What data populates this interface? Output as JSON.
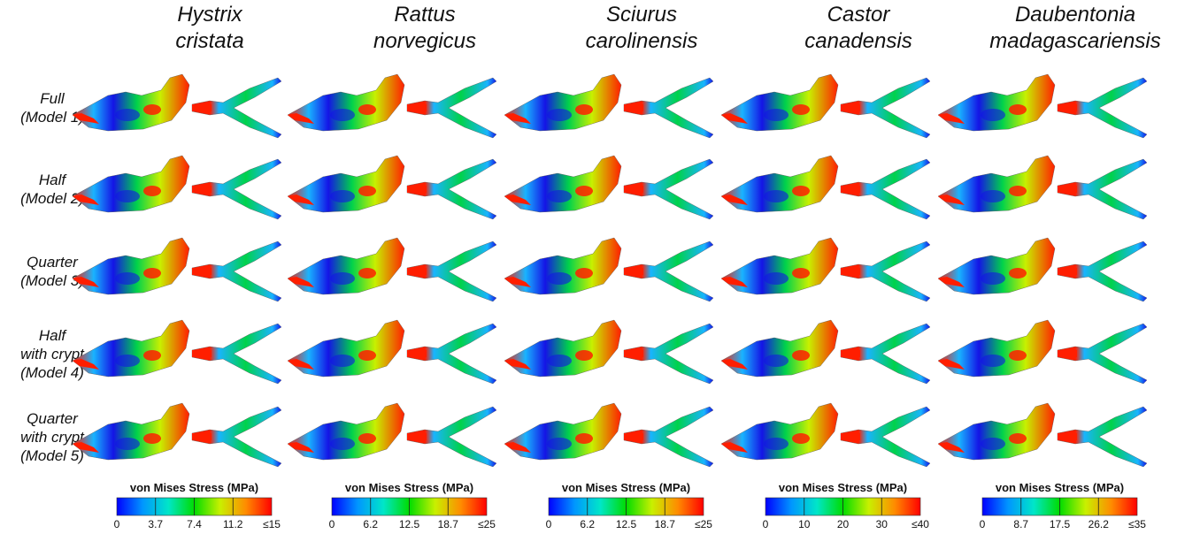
{
  "species": [
    {
      "line1": "Hystrix",
      "line2": "cristata",
      "ticks": [
        "0",
        "3.7",
        "7.4",
        "11.2",
        "≤15"
      ]
    },
    {
      "line1": "Rattus",
      "line2": "norvegicus",
      "ticks": [
        "0",
        "6.2",
        "12.5",
        "18.7",
        "≤25"
      ]
    },
    {
      "line1": "Sciurus",
      "line2": "carolinensis",
      "ticks": [
        "0",
        "6.2",
        "12.5",
        "18.7",
        "≤25"
      ]
    },
    {
      "line1": "Castor",
      "line2": "canadensis",
      "ticks": [
        "0",
        "10",
        "20",
        "30",
        "≤40"
      ]
    },
    {
      "line1": "Daubentonia",
      "line2": "madagascariensis",
      "ticks": [
        "0",
        "8.7",
        "17.5",
        "26.2",
        "≤35"
      ]
    }
  ],
  "models": [
    {
      "lines": [
        "Full",
        "(Model 1)"
      ]
    },
    {
      "lines": [
        "Half",
        "(Model 2)"
      ]
    },
    {
      "lines": [
        "Quarter",
        "(Model 3)"
      ]
    },
    {
      "lines": [
        "Half",
        "with crypt",
        "(Model 4)"
      ]
    },
    {
      "lines": [
        "Quarter",
        "with crypt",
        "(Model 5)"
      ]
    }
  ],
  "colorbar": {
    "title": "von Mises Stress (MPa)",
    "gradient": [
      "#0000ff",
      "#0096ff",
      "#00e6c8",
      "#00dc00",
      "#c8f000",
      "#ff8c00",
      "#ff0000"
    ]
  },
  "stress_palette": {
    "low": "#1414e6",
    "mid_low": "#19b4ff",
    "mid": "#00d24b",
    "mid_high": "#c8f000",
    "high": "#ff1e00"
  }
}
